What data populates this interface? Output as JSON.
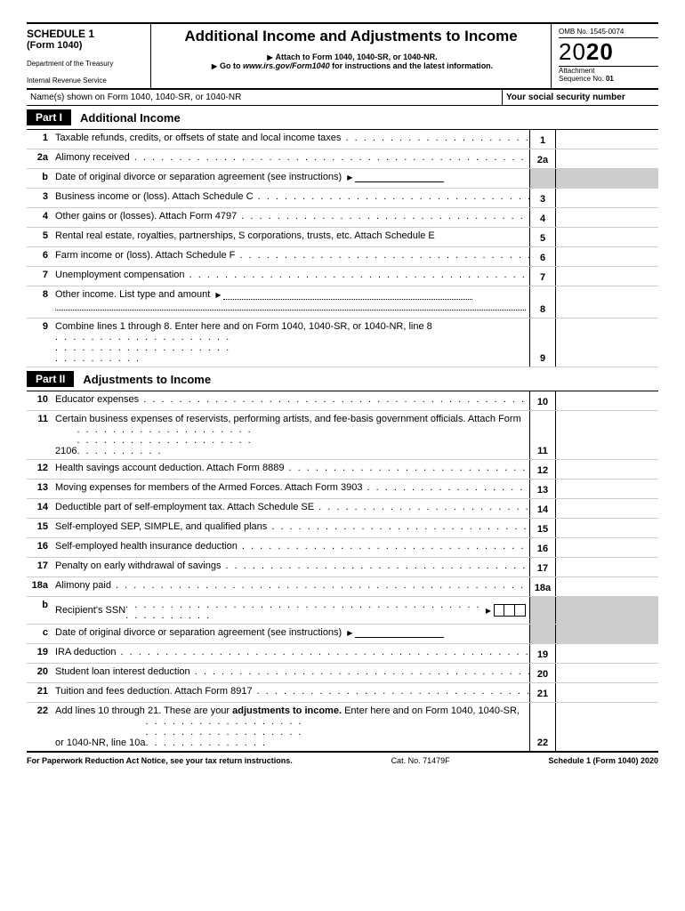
{
  "header": {
    "schedule": "SCHEDULE 1",
    "form": "(Form 1040)",
    "dept1": "Department of the Treasury",
    "dept2": "Internal Revenue Service",
    "title": "Additional Income and Adjustments to Income",
    "sub1": "Attach to Form 1040, 1040-SR, or 1040-NR.",
    "sub2_prefix": "Go to ",
    "sub2_link": "www.irs.gov/Form1040",
    "sub2_suffix": " for instructions and the latest information.",
    "omb": "OMB No. 1545-0074",
    "year_prefix": "20",
    "year_suffix": "20",
    "attach1": "Attachment",
    "attach2": "Sequence No. ",
    "attach_num": "01"
  },
  "name_row": {
    "left": "Name(s) shown on Form 1040, 1040-SR, or 1040-NR",
    "right": "Your social security number"
  },
  "part1": {
    "tab": "Part I",
    "title": "Additional Income",
    "lines": [
      {
        "num": "1",
        "text": "Taxable refunds, credits, or offsets of state and local income taxes",
        "box": "1",
        "type": "dots"
      },
      {
        "num": "2a",
        "text": "Alimony received",
        "box": "2a",
        "type": "dots"
      },
      {
        "num": "b",
        "text": "Date of original divorce or separation agreement (see instructions)",
        "type": "date-entry"
      },
      {
        "num": "3",
        "text": "Business income or (loss). Attach Schedule C",
        "box": "3",
        "type": "dots"
      },
      {
        "num": "4",
        "text": "Other gains or (losses). Attach Form 4797",
        "box": "4",
        "type": "dots"
      },
      {
        "num": "5",
        "text": "Rental real estate, royalties, partnerships, S corporations, trusts, etc. Attach Schedule E",
        "box": "5",
        "type": "plain"
      },
      {
        "num": "6",
        "text": "Farm income or (loss). Attach Schedule F",
        "box": "6",
        "type": "dots"
      },
      {
        "num": "7",
        "text": "Unemployment compensation",
        "box": "7",
        "type": "dots"
      },
      {
        "num": "8",
        "text": "Other income. List type and amount",
        "box": "8",
        "type": "other-income"
      },
      {
        "num": "9",
        "text": "Combine lines 1 through 8. Enter here and on Form 1040, 1040-SR, or 1040-NR, line 8",
        "box": "9",
        "type": "wrap-dots"
      }
    ]
  },
  "part2": {
    "tab": "Part II",
    "title": "Adjustments to Income",
    "lines": [
      {
        "num": "10",
        "text": "Educator expenses",
        "box": "10",
        "type": "dots"
      },
      {
        "num": "11",
        "text": "Certain business expenses of reservists, performing artists, and fee-basis government officials. Attach Form 2106",
        "box": "11",
        "type": "wrap-dots"
      },
      {
        "num": "12",
        "text": "Health savings account deduction. Attach Form 8889",
        "box": "12",
        "type": "dots"
      },
      {
        "num": "13",
        "text": "Moving expenses for members of the Armed Forces. Attach Form 3903",
        "box": "13",
        "type": "dots"
      },
      {
        "num": "14",
        "text": "Deductible part of self-employment tax. Attach Schedule SE",
        "box": "14",
        "type": "dots"
      },
      {
        "num": "15",
        "text": "Self-employed SEP, SIMPLE, and qualified plans",
        "box": "15",
        "type": "dots"
      },
      {
        "num": "16",
        "text": "Self-employed health insurance deduction",
        "box": "16",
        "type": "dots"
      },
      {
        "num": "17",
        "text": "Penalty on early withdrawal of savings",
        "box": "17",
        "type": "dots"
      },
      {
        "num": "18a",
        "text": "Alimony paid",
        "box": "18a",
        "type": "dots"
      },
      {
        "num": "b",
        "text": "Recipient's SSN",
        "type": "ssn-entry"
      },
      {
        "num": "c",
        "text": "Date of original divorce or separation agreement (see instructions)",
        "type": "date-entry"
      },
      {
        "num": "19",
        "text": "IRA deduction",
        "box": "19",
        "type": "dots"
      },
      {
        "num": "20",
        "text": "Student loan interest deduction",
        "box": "20",
        "type": "dots"
      },
      {
        "num": "21",
        "text": "Tuition and fees deduction. Attach Form 8917",
        "box": "21",
        "type": "dots"
      },
      {
        "num": "22",
        "text_a": "Add lines 10 through 21. These are your ",
        "text_b": "adjustments to income.",
        "text_c": " Enter here and on Form 1040, 1040-SR, or 1040-NR, line 10a",
        "box": "22",
        "type": "final"
      }
    ]
  },
  "footer": {
    "left": "For Paperwork Reduction Act Notice, see your tax return instructions.",
    "center": "Cat. No. 71479F",
    "right": "Schedule 1 (Form 1040) 2020"
  }
}
